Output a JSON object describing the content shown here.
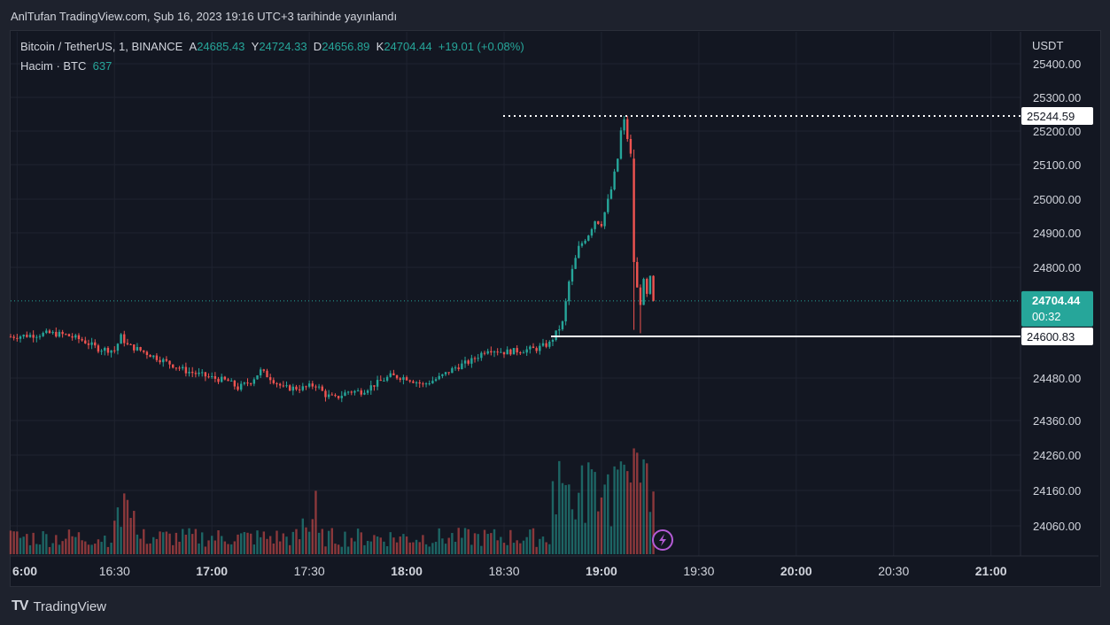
{
  "header": {
    "published": "AnlTufan TradingView.com, Şub 16, 2023 19:16 UTC+3 tarihinde yayınlandı"
  },
  "legend": {
    "symbol": "Bitcoin / TetherUS, 1, BINANCE",
    "open_label": "A",
    "open": "24685.43",
    "high_label": "Y",
    "high": "24724.33",
    "low_label": "D",
    "low": "24656.89",
    "close_label": "K",
    "close": "24704.44",
    "change": "+19.01 (+0.08%)",
    "volume_label": "Hacim · BTC",
    "volume": "637"
  },
  "colors": {
    "up": "#26a69a",
    "down": "#ef5350",
    "background": "#131722",
    "grid": "#1f2330"
  },
  "chart_data": {
    "type": "candlestick",
    "currency": "USDT",
    "y_ticks": [
      "25400.00",
      "25300.00",
      "25200.00",
      "25100.00",
      "25000.00",
      "24900.00",
      "24800.00",
      "24480.00",
      "24360.00",
      "24260.00",
      "24160.00",
      "24060.00"
    ],
    "x_ticks": [
      "16:00",
      "16:30",
      "17:00",
      "17:30",
      "18:00",
      "18:30",
      "19:00",
      "19:30",
      "20:00",
      "20:30",
      "21:00"
    ],
    "bold_x_ticks": [
      "16:00",
      "17:00",
      "18:00",
      "19:00",
      "20:00",
      "21:00"
    ],
    "price_labels": [
      {
        "id": "high-line",
        "value": "25244.59",
        "style": "dotted"
      },
      {
        "id": "current",
        "value": "24704.44",
        "countdown": "00:32",
        "style": "current"
      },
      {
        "id": "support-line",
        "value": "24600.83",
        "style": "solid"
      }
    ],
    "series": [
      {
        "kind": "close-path",
        "points": [
          [
            "15:58",
            24600
          ],
          [
            "16:05",
            24605
          ],
          [
            "16:10",
            24610
          ],
          [
            "16:15",
            24605
          ],
          [
            "16:20",
            24590
          ],
          [
            "16:25",
            24565
          ],
          [
            "16:30",
            24560
          ],
          [
            "16:32",
            24600
          ],
          [
            "16:34",
            24575
          ],
          [
            "16:38",
            24560
          ],
          [
            "16:45",
            24530
          ],
          [
            "16:52",
            24500
          ],
          [
            "17:00",
            24480
          ],
          [
            "17:05",
            24470
          ],
          [
            "17:08",
            24450
          ],
          [
            "17:12",
            24470
          ],
          [
            "17:15",
            24500
          ],
          [
            "17:18",
            24480
          ],
          [
            "17:22",
            24450
          ],
          [
            "17:28",
            24450
          ],
          [
            "17:32",
            24460
          ],
          [
            "17:35",
            24430
          ],
          [
            "17:38",
            24420
          ],
          [
            "17:42",
            24440
          ],
          [
            "17:46",
            24440
          ],
          [
            "17:50",
            24460
          ],
          [
            "17:55",
            24485
          ],
          [
            "18:00",
            24480
          ],
          [
            "18:05",
            24460
          ],
          [
            "18:10",
            24480
          ],
          [
            "18:15",
            24510
          ],
          [
            "18:20",
            24530
          ],
          [
            "18:25",
            24565
          ],
          [
            "18:30",
            24555
          ],
          [
            "18:35",
            24560
          ],
          [
            "18:40",
            24565
          ],
          [
            "18:44",
            24580
          ],
          [
            "18:48",
            24640
          ],
          [
            "18:50",
            24760
          ],
          [
            "18:53",
            24860
          ],
          [
            "18:56",
            24900
          ],
          [
            "18:58",
            24940
          ],
          [
            "19:00",
            24930
          ],
          [
            "19:03",
            25030
          ],
          [
            "19:05",
            25120
          ],
          [
            "19:06",
            25200
          ],
          [
            "19:07",
            25230
          ],
          [
            "19:08",
            25180
          ],
          [
            "19:09",
            25130
          ],
          [
            "19:10",
            24820
          ],
          [
            "19:11",
            24740
          ],
          [
            "19:12",
            24700
          ],
          [
            "19:13",
            24760
          ],
          [
            "19:14",
            24720
          ],
          [
            "19:15",
            24770
          ],
          [
            "19:16",
            24704.44
          ]
        ]
      }
    ]
  },
  "footer": {
    "brand": "TradingView"
  }
}
